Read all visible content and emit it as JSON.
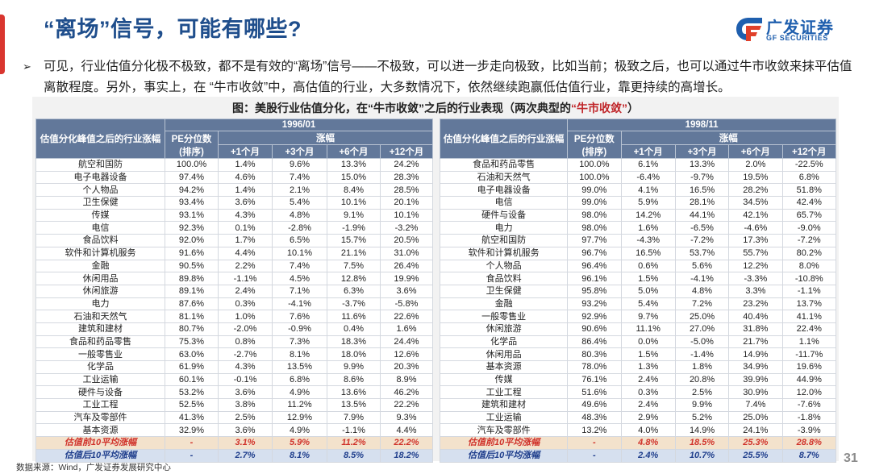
{
  "slide": {
    "title": "“离场”信号，可能有哪些?",
    "bullet": "可见，行业估值分化极不极致，都不是有效的“离场”信号——不极致，可以进一步走向极致，比如当前；极致之后，也可以通过牛市收敛来抹平估值离散程度。另外，事实上，在 “牛市收敛”中，高估值的行业，大多数情况下，依然继续跑赢低估值行业，靠更持续的高增长。",
    "bullet_icon": "arrow-bullet-icon",
    "page_number": "31",
    "source": "数据来源：Wind，广发证券发展研究中心"
  },
  "logo": {
    "cn": "广发证券",
    "en": "GF SECURITIES",
    "colors": {
      "blue": "#1f5fae",
      "red": "#e0402a"
    }
  },
  "figure": {
    "title_prefix": "图：美股行业估值分化，在“牛市收敛”之后的行业表现（两次典型的",
    "title_highlight": "“牛市收敛”",
    "title_suffix": "）"
  },
  "colors": {
    "header_bg": "#62789a",
    "title_blue": "#1f4e8c",
    "accent_red": "#d9362f",
    "avg_pre_bg": "#f3e2cc",
    "avg_pre_text": "#d0322a",
    "avg_post_bg": "#d6e0ef",
    "avg_post_text": "#1f3e8c"
  },
  "headers": {
    "industry": "估值分化峰值之后的行业涨幅",
    "pe": "PE分位数",
    "pe_sub": "(排序)",
    "gain": "涨幅",
    "m1": "+1个月",
    "m3": "+3个月",
    "m6": "+6个月",
    "m12": "+12个月"
  },
  "tables": [
    {
      "date": "1996/01",
      "rows": [
        [
          "航空和国防",
          "100.0%",
          "1.4%",
          "9.6%",
          "13.3%",
          "24.2%"
        ],
        [
          "电子电器设备",
          "97.4%",
          "4.6%",
          "7.4%",
          "15.0%",
          "28.3%"
        ],
        [
          "个人物品",
          "94.2%",
          "1.4%",
          "2.1%",
          "8.4%",
          "28.5%"
        ],
        [
          "卫生保健",
          "93.4%",
          "3.6%",
          "5.4%",
          "10.1%",
          "20.1%"
        ],
        [
          "传媒",
          "93.1%",
          "4.3%",
          "4.8%",
          "9.1%",
          "10.1%"
        ],
        [
          "电信",
          "92.3%",
          "0.1%",
          "-2.8%",
          "-1.9%",
          "-3.2%"
        ],
        [
          "食品饮料",
          "92.0%",
          "1.7%",
          "6.5%",
          "15.7%",
          "20.5%"
        ],
        [
          "软件和计算机服务",
          "91.6%",
          "4.4%",
          "10.1%",
          "21.1%",
          "31.0%"
        ],
        [
          "金融",
          "90.5%",
          "2.2%",
          "7.4%",
          "7.5%",
          "26.4%"
        ],
        [
          "休闲用品",
          "89.8%",
          "-1.1%",
          "4.5%",
          "12.8%",
          "19.9%"
        ],
        [
          "休闲旅游",
          "89.1%",
          "2.4%",
          "7.1%",
          "6.3%",
          "3.6%"
        ],
        [
          "电力",
          "87.6%",
          "0.3%",
          "-4.1%",
          "-3.7%",
          "-5.8%"
        ],
        [
          "石油和天然气",
          "81.1%",
          "1.0%",
          "7.6%",
          "11.6%",
          "22.6%"
        ],
        [
          "建筑和建材",
          "80.7%",
          "-2.0%",
          "-0.9%",
          "0.4%",
          "1.6%"
        ],
        [
          "食品和药品零售",
          "75.3%",
          "0.8%",
          "7.3%",
          "18.3%",
          "24.4%"
        ],
        [
          "一般零售业",
          "63.0%",
          "-2.7%",
          "8.1%",
          "18.0%",
          "12.6%"
        ],
        [
          "化学品",
          "61.9%",
          "4.3%",
          "13.5%",
          "9.9%",
          "20.3%"
        ],
        [
          "工业运输",
          "60.1%",
          "-0.1%",
          "6.8%",
          "8.6%",
          "8.9%"
        ],
        [
          "硬件与设备",
          "53.2%",
          "3.6%",
          "4.9%",
          "13.6%",
          "46.2%"
        ],
        [
          "工业工程",
          "52.5%",
          "3.8%",
          "11.2%",
          "13.5%",
          "22.2%"
        ],
        [
          "汽车及零部件",
          "41.3%",
          "2.5%",
          "12.9%",
          "7.9%",
          "9.3%"
        ],
        [
          "基本资源",
          "32.9%",
          "3.6%",
          "4.9%",
          "-1.1%",
          "4.4%"
        ]
      ],
      "avg_pre": [
        "估值前10平均涨幅",
        "-",
        "3.1%",
        "5.9%",
        "11.2%",
        "22.2%"
      ],
      "avg_post": [
        "估值后10平均涨幅",
        "-",
        "2.7%",
        "8.1%",
        "8.5%",
        "18.2%"
      ]
    },
    {
      "date": "1998/11",
      "rows": [
        [
          "食品和药品零售",
          "100.0%",
          "6.1%",
          "13.3%",
          "2.0%",
          "-22.5%"
        ],
        [
          "石油和天然气",
          "100.0%",
          "-6.4%",
          "-9.7%",
          "19.5%",
          "6.8%"
        ],
        [
          "电子电器设备",
          "99.0%",
          "4.1%",
          "16.5%",
          "28.2%",
          "51.8%"
        ],
        [
          "电信",
          "99.0%",
          "5.9%",
          "28.1%",
          "34.5%",
          "42.4%"
        ],
        [
          "硬件与设备",
          "98.0%",
          "14.2%",
          "44.1%",
          "42.1%",
          "65.7%"
        ],
        [
          "电力",
          "98.0%",
          "1.6%",
          "-6.5%",
          "-4.6%",
          "-9.0%"
        ],
        [
          "航空和国防",
          "97.7%",
          "-4.3%",
          "-7.2%",
          "17.3%",
          "-7.2%"
        ],
        [
          "软件和计算机服务",
          "96.7%",
          "16.5%",
          "53.7%",
          "55.7%",
          "80.2%"
        ],
        [
          "个人物品",
          "96.4%",
          "0.6%",
          "5.6%",
          "12.2%",
          "8.0%"
        ],
        [
          "食品饮料",
          "96.1%",
          "1.5%",
          "-4.1%",
          "-3.3%",
          "-10.8%"
        ],
        [
          "卫生保健",
          "95.8%",
          "5.0%",
          "4.8%",
          "3.3%",
          "-1.1%"
        ],
        [
          "金融",
          "93.2%",
          "5.4%",
          "7.2%",
          "23.2%",
          "13.7%"
        ],
        [
          "一般零售业",
          "92.9%",
          "9.7%",
          "25.0%",
          "40.4%",
          "41.1%"
        ],
        [
          "休闲旅游",
          "90.6%",
          "11.1%",
          "27.0%",
          "31.8%",
          "22.4%"
        ],
        [
          "化学品",
          "86.4%",
          "0.0%",
          "-5.0%",
          "21.7%",
          "1.1%"
        ],
        [
          "休闲用品",
          "80.3%",
          "1.5%",
          "-1.4%",
          "14.9%",
          "-11.7%"
        ],
        [
          "基本资源",
          "78.0%",
          "1.3%",
          "1.8%",
          "34.9%",
          "19.6%"
        ],
        [
          "传媒",
          "76.1%",
          "2.4%",
          "20.8%",
          "39.9%",
          "44.9%"
        ],
        [
          "工业工程",
          "51.6%",
          "0.3%",
          "2.5%",
          "30.9%",
          "12.0%"
        ],
        [
          "建筑和建材",
          "49.6%",
          "2.4%",
          "9.9%",
          "7.4%",
          "-7.6%"
        ],
        [
          "工业运输",
          "48.3%",
          "2.9%",
          "5.2%",
          "25.0%",
          "-1.8%"
        ],
        [
          "汽车及零部件",
          "13.2%",
          "4.0%",
          "14.9%",
          "24.1%",
          "-3.9%"
        ]
      ],
      "avg_pre": [
        "估值前10平均涨幅",
        "-",
        "4.8%",
        "18.5%",
        "25.3%",
        "28.8%"
      ],
      "avg_post": [
        "估值后10平均涨幅",
        "-",
        "2.4%",
        "10.7%",
        "25.5%",
        "8.7%"
      ]
    }
  ]
}
